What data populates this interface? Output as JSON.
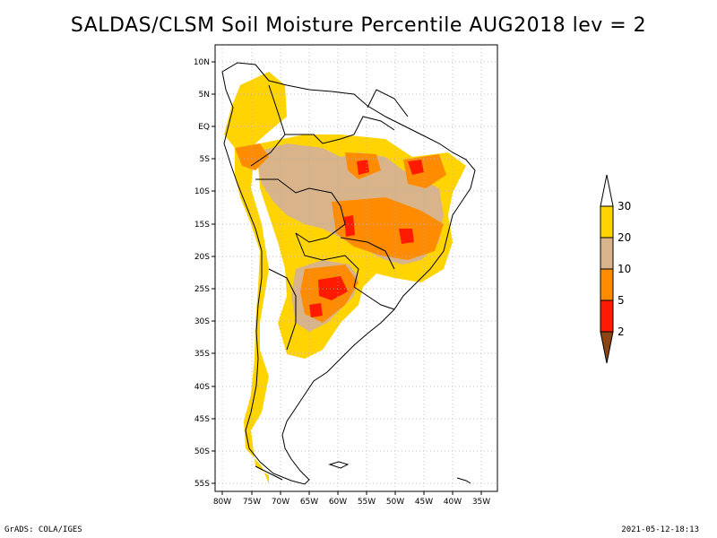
{
  "title": "SALDAS/CLSM Soil Moisture Percentile AUG2018 lev = 2",
  "footer": {
    "left": "GrADS: COLA/IGES",
    "right": "2021-05-12-18:13"
  },
  "map": {
    "lon_labels": [
      "80W",
      "75W",
      "70W",
      "65W",
      "60W",
      "55W",
      "50W",
      "45W",
      "40W",
      "35W"
    ],
    "lat_labels": [
      "10N",
      "5N",
      "EQ",
      "5S",
      "10S",
      "15S",
      "20S",
      "25S",
      "30S",
      "35S",
      "40S",
      "45S",
      "50S",
      "55S"
    ]
  },
  "legend": {
    "labels": [
      "30",
      "20",
      "10",
      "5",
      "2"
    ],
    "colors": {
      "above_30": "#ffffff",
      "20_30": "#ffd400",
      "10_20": "#d9b48a",
      "5_10": "#ff8c00",
      "2_5": "#ff1a00",
      "below_2": "#8b4513"
    }
  },
  "colors": {
    "grid": "#b0b0b0",
    "coast": "#000000",
    "frame": "#000000"
  }
}
